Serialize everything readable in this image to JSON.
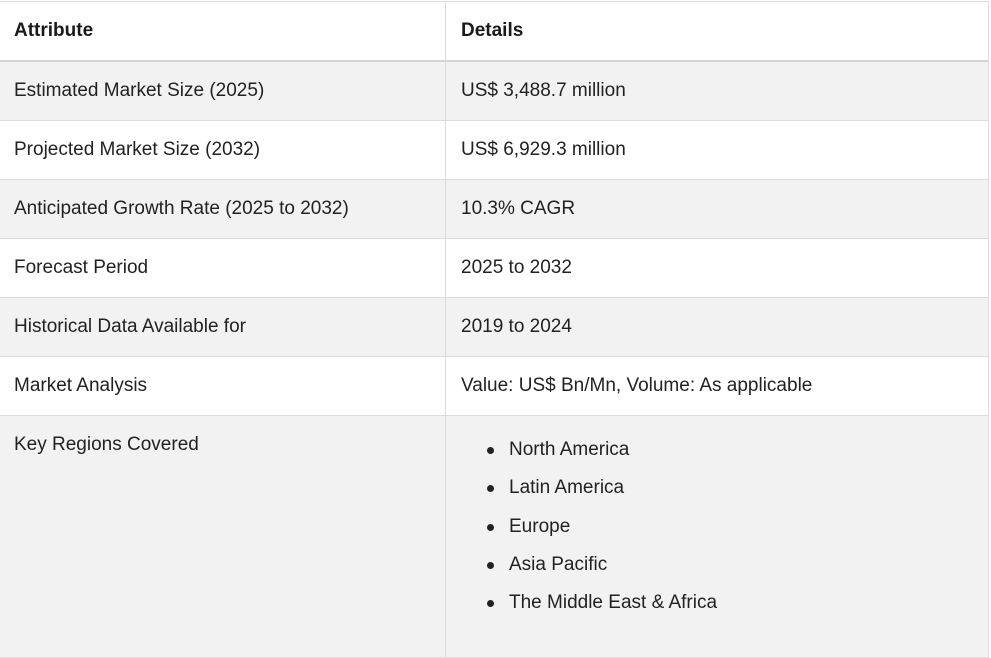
{
  "table": {
    "headers": {
      "attribute": "Attribute",
      "details": "Details"
    },
    "rows": [
      {
        "attribute": "Estimated Market Size (2025)",
        "details": "US$ 3,488.7 million"
      },
      {
        "attribute": "Projected Market Size (2032)",
        "details": "US$ 6,929.3 million"
      },
      {
        "attribute": "Anticipated Growth Rate (2025 to 2032)",
        "details": "10.3% CAGR"
      },
      {
        "attribute": "Forecast Period",
        "details": "2025 to 2032"
      },
      {
        "attribute": "Historical Data Available for",
        "details": "2019 to 2024"
      },
      {
        "attribute": "Market Analysis",
        "details": "Value: US$ Bn/Mn, Volume: As applicable"
      }
    ],
    "regions_row": {
      "attribute": "Key Regions Covered",
      "regions": [
        "North America",
        "Latin America",
        "Europe",
        "Asia Pacific",
        "The Middle East & Africa"
      ]
    }
  }
}
